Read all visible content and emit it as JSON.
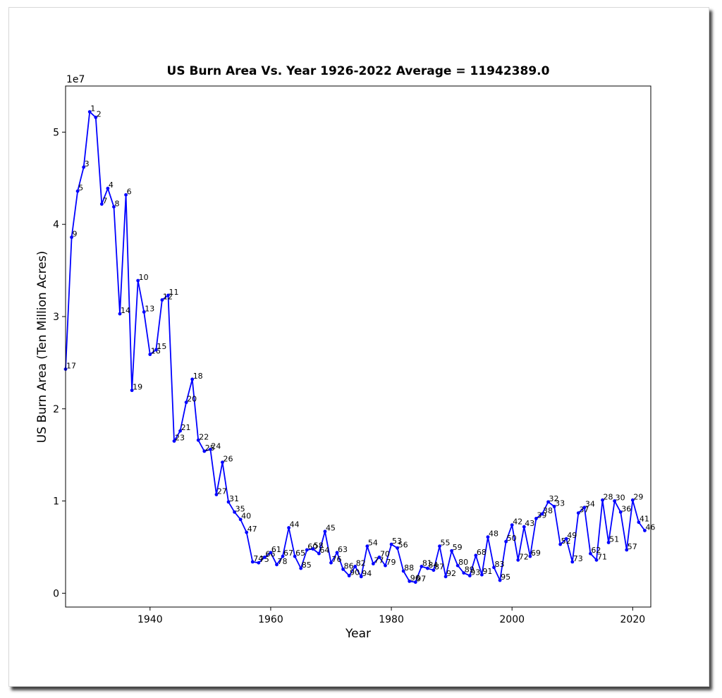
{
  "chart_data": {
    "type": "line",
    "title": "US Burn Area Vs. Year 1926-2022 Average = 11942389.0",
    "xlabel": "Year",
    "ylabel": "US Burn Area (Ten Million Acres)",
    "y_offset_label": "1e7",
    "xlim": [
      1926,
      2023
    ],
    "ylim": [
      -0.15,
      5.5
    ],
    "x_ticks": [
      1940,
      1960,
      1980,
      2000,
      2020
    ],
    "y_ticks": [
      0,
      1,
      2,
      3,
      4,
      5
    ],
    "grid": false,
    "line_color": "#0000ff",
    "series": [
      {
        "x": [
          1926,
          1927,
          1928,
          1929,
          1930,
          1931,
          1932,
          1933,
          1934,
          1935,
          1936,
          1937,
          1938,
          1939,
          1940,
          1941,
          1942,
          1943,
          1944,
          1945,
          1946,
          1947,
          1948,
          1949,
          1950,
          1951,
          1952,
          1953,
          1954,
          1955,
          1956,
          1957,
          1958,
          1959,
          1960,
          1961,
          1962,
          1963,
          1964,
          1965,
          1966,
          1967,
          1968,
          1969,
          1970,
          1971,
          1972,
          1973,
          1974,
          1975,
          1976,
          1977,
          1978,
          1979,
          1980,
          1981,
          1982,
          1983,
          1984,
          1985,
          1986,
          1987,
          1988,
          1989,
          1990,
          1991,
          1992,
          1993,
          1994,
          1995,
          1996,
          1997,
          1998,
          1999,
          2000,
          2001,
          2002,
          2003,
          2004,
          2005,
          2006,
          2007,
          2008,
          2009,
          2010,
          2011,
          2012,
          2013,
          2014,
          2015,
          2016,
          2017,
          2018,
          2019,
          2020,
          2021,
          2022
        ],
        "values": [
          2.43,
          3.86,
          4.36,
          4.62,
          5.22,
          5.16,
          4.22,
          4.39,
          4.19,
          3.03,
          4.32,
          2.2,
          3.39,
          3.05,
          2.59,
          2.64,
          3.18,
          3.23,
          1.65,
          1.76,
          2.07,
          2.32,
          1.66,
          1.54,
          1.56,
          1.07,
          1.42,
          0.99,
          0.88,
          0.8,
          0.66,
          0.34,
          0.33,
          0.39,
          0.44,
          0.31,
          0.4,
          0.71,
          0.4,
          0.27,
          0.47,
          0.48,
          0.43,
          0.67,
          0.33,
          0.44,
          0.26,
          0.19,
          0.29,
          0.18,
          0.51,
          0.32,
          0.39,
          0.3,
          0.53,
          0.49,
          0.24,
          0.13,
          0.12,
          0.29,
          0.27,
          0.25,
          0.51,
          0.18,
          0.46,
          0.3,
          0.22,
          0.19,
          0.41,
          0.2,
          0.61,
          0.28,
          0.14,
          0.56,
          0.74,
          0.36,
          0.72,
          0.4,
          0.81,
          0.86,
          0.99,
          0.94,
          0.53,
          0.59,
          0.34,
          0.87,
          0.93,
          0.43,
          0.36,
          1.01,
          0.55,
          1.0,
          0.88,
          0.47,
          1.01,
          0.77,
          0.68
        ],
        "ranks": [
          17,
          9,
          5,
          3,
          1,
          2,
          7,
          4,
          8,
          14,
          6,
          19,
          10,
          13,
          16,
          15,
          12,
          11,
          23,
          21,
          20,
          18,
          22,
          25,
          24,
          27,
          26,
          31,
          35,
          40,
          47,
          74,
          75,
          66,
          61,
          78,
          67,
          44,
          65,
          85,
          60,
          58,
          64,
          45,
          76,
          63,
          86,
          90,
          82,
          94,
          54,
          77,
          70,
          79,
          53,
          56,
          88,
          96,
          97,
          81,
          84,
          87,
          55,
          92,
          59,
          80,
          89,
          93,
          68,
          91,
          48,
          83,
          95,
          50,
          42,
          72,
          43,
          69,
          39,
          38,
          32,
          33,
          52,
          49,
          73,
          37,
          34,
          62,
          71,
          28,
          51,
          30,
          36,
          57,
          29,
          41,
          46
        ]
      }
    ]
  }
}
